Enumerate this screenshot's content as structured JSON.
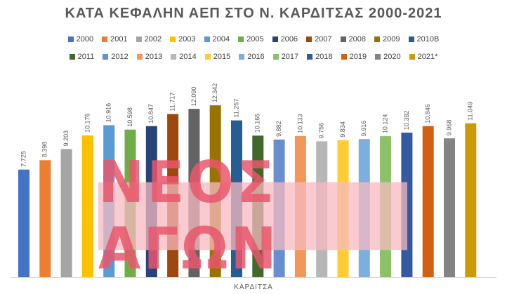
{
  "chart_data": {
    "type": "bar",
    "title": "ΚΑΤΑ ΚΕΦΑΛΗΝ ΑΕΠ ΣΤΟ Ν. ΚΑΡΔΙΤΣΑΣ 2000-2021",
    "xlabel": "ΚΑΡΔΙΤΣΑ",
    "ylabel": "",
    "categories": [
      "ΚΑΡΔΙΤΣΑ"
    ],
    "ylim": [
      0,
      13000
    ],
    "grid": false,
    "legend_position": "top",
    "series": [
      {
        "name": "2000",
        "value": 7725,
        "label": "7.725",
        "color": "#4472C4"
      },
      {
        "name": "2001",
        "value": 8398,
        "label": "8.398",
        "color": "#ED7D31"
      },
      {
        "name": "2002",
        "value": 9203,
        "label": "9.203",
        "color": "#A5A5A5"
      },
      {
        "name": "2003",
        "value": 10176,
        "label": "10.176",
        "color": "#FFC000"
      },
      {
        "name": "2004",
        "value": 10916,
        "label": "10.916",
        "color": "#5B9BD5"
      },
      {
        "name": "2005",
        "value": 10598,
        "label": "10.598",
        "color": "#70AD47"
      },
      {
        "name": "2006",
        "value": 10847,
        "label": "10.847",
        "color": "#264478"
      },
      {
        "name": "2007",
        "value": 11717,
        "label": "11.717",
        "color": "#9E480E"
      },
      {
        "name": "2008",
        "value": 12090,
        "label": "12.090",
        "color": "#636363"
      },
      {
        "name": "2009",
        "value": 12342,
        "label": "12.342",
        "color": "#997300"
      },
      {
        "name": "2010B",
        "value": 11257,
        "label": "11.257",
        "color": "#255E91"
      },
      {
        "name": "2011",
        "value": 10165,
        "label": "10.165",
        "color": "#43682B"
      },
      {
        "name": "2012",
        "value": 9882,
        "label": "9.882",
        "color": "#698ED0"
      },
      {
        "name": "2013",
        "value": 10133,
        "label": "10.133",
        "color": "#F1975A"
      },
      {
        "name": "2014",
        "value": 9756,
        "label": "9.756",
        "color": "#B7B7B7"
      },
      {
        "name": "2015",
        "value": 9834,
        "label": "9.834",
        "color": "#FFCD33"
      },
      {
        "name": "2016",
        "value": 9916,
        "label": "9.916",
        "color": "#7CAFDD"
      },
      {
        "name": "2017",
        "value": 10124,
        "label": "10.124",
        "color": "#8CC168"
      },
      {
        "name": "2018",
        "value": 10382,
        "label": "10.382",
        "color": "#335AA1"
      },
      {
        "name": "2019",
        "value": 10846,
        "label": "10.846",
        "color": "#D26012"
      },
      {
        "name": "2020",
        "value": 9968,
        "label": "9.968",
        "color": "#848484"
      },
      {
        "name": "2021*",
        "value": 11049,
        "label": "11.049",
        "color": "#CC9A06"
      }
    ]
  },
  "watermark": {
    "text": "ΝΕΟΣ ΑΓΩΝ"
  }
}
